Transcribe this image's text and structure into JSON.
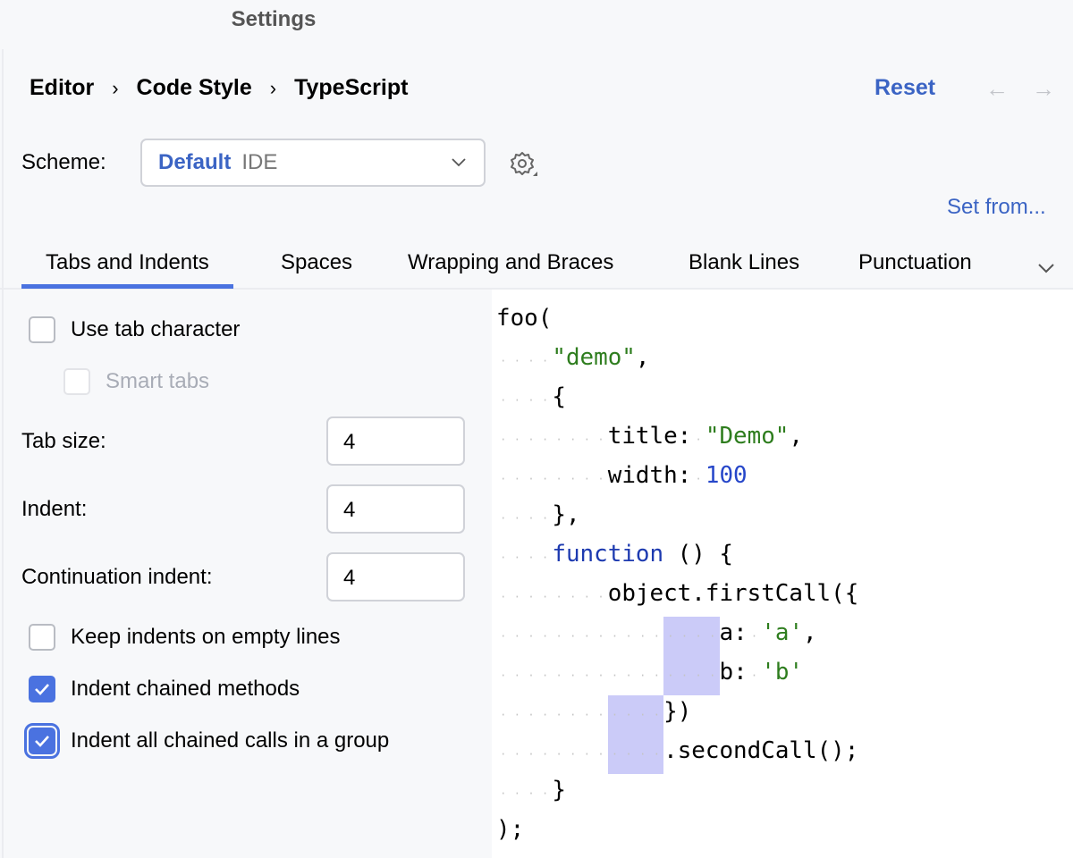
{
  "window": {
    "title": "Settings"
  },
  "breadcrumb": [
    "Editor",
    "Code Style",
    "TypeScript"
  ],
  "header": {
    "reset_label": "Reset",
    "back_icon": "arrow-left-icon",
    "forward_icon": "arrow-right-icon"
  },
  "scheme": {
    "label": "Scheme:",
    "name": "Default",
    "kind": "IDE",
    "set_from_label": "Set from..."
  },
  "tabs": [
    {
      "label": "Tabs and Indents",
      "active": true
    },
    {
      "label": "Spaces"
    },
    {
      "label": "Wrapping and Braces"
    },
    {
      "label": "Blank Lines"
    },
    {
      "label": "Punctuation"
    }
  ],
  "options": {
    "use_tab_character": {
      "label": "Use tab character",
      "checked": false
    },
    "smart_tabs": {
      "label": "Smart tabs",
      "checked": false,
      "disabled": true
    },
    "tab_size": {
      "label": "Tab size:",
      "value": "4"
    },
    "indent": {
      "label": "Indent:",
      "value": "4"
    },
    "continuation_indent": {
      "label": "Continuation indent:",
      "value": "4"
    },
    "keep_indents": {
      "label": "Keep indents on empty lines",
      "checked": false
    },
    "indent_chained": {
      "label": "Indent chained methods",
      "checked": true
    },
    "indent_all_chained": {
      "label": "Indent all chained calls in a group",
      "checked": true,
      "focused": true
    }
  },
  "colors": {
    "accent": "#4a72e0",
    "link": "#3b64c4",
    "string": "#2e7d1e",
    "number": "#2646c9",
    "highlight": "#cbcbf8"
  },
  "code_preview": [
    {
      "indent": 0,
      "tokens": [
        {
          "t": "foo("
        }
      ]
    },
    {
      "indent": 4,
      "tokens": [
        {
          "t": "\"demo\"",
          "k": "str"
        },
        {
          "t": ","
        }
      ]
    },
    {
      "indent": 4,
      "tokens": [
        {
          "t": "{"
        }
      ]
    },
    {
      "indent": 8,
      "tokens": [
        {
          "t": "title:"
        },
        {
          "t": " ",
          "k": "ws"
        },
        {
          "t": "\"Demo\"",
          "k": "str"
        },
        {
          "t": ","
        }
      ]
    },
    {
      "indent": 8,
      "tokens": [
        {
          "t": "width:"
        },
        {
          "t": " ",
          "k": "ws"
        },
        {
          "t": "100",
          "k": "num"
        }
      ]
    },
    {
      "indent": 4,
      "tokens": [
        {
          "t": "},"
        }
      ]
    },
    {
      "indent": 4,
      "tokens": [
        {
          "t": "function",
          "k": "kw"
        },
        {
          "t": " () {"
        }
      ]
    },
    {
      "indent": 8,
      "tokens": [
        {
          "t": "object.firstCall({"
        }
      ]
    },
    {
      "indent": 16,
      "highlight": [
        12,
        16
      ],
      "tokens": [
        {
          "t": "a:"
        },
        {
          "t": " ",
          "k": "ws"
        },
        {
          "t": "'a'",
          "k": "str"
        },
        {
          "t": ","
        }
      ]
    },
    {
      "indent": 16,
      "highlight": [
        12,
        16
      ],
      "tokens": [
        {
          "t": "b:"
        },
        {
          "t": " ",
          "k": "ws"
        },
        {
          "t": "'b'",
          "k": "str"
        }
      ]
    },
    {
      "indent": 12,
      "highlight": [
        8,
        12
      ],
      "tokens": [
        {
          "t": "})"
        }
      ]
    },
    {
      "indent": 12,
      "highlight": [
        8,
        12
      ],
      "tokens": [
        {
          "t": ".secondCall();"
        }
      ]
    },
    {
      "indent": 4,
      "tokens": [
        {
          "t": "}"
        }
      ]
    },
    {
      "indent": 0,
      "tokens": [
        {
          "t": ");"
        }
      ]
    }
  ]
}
